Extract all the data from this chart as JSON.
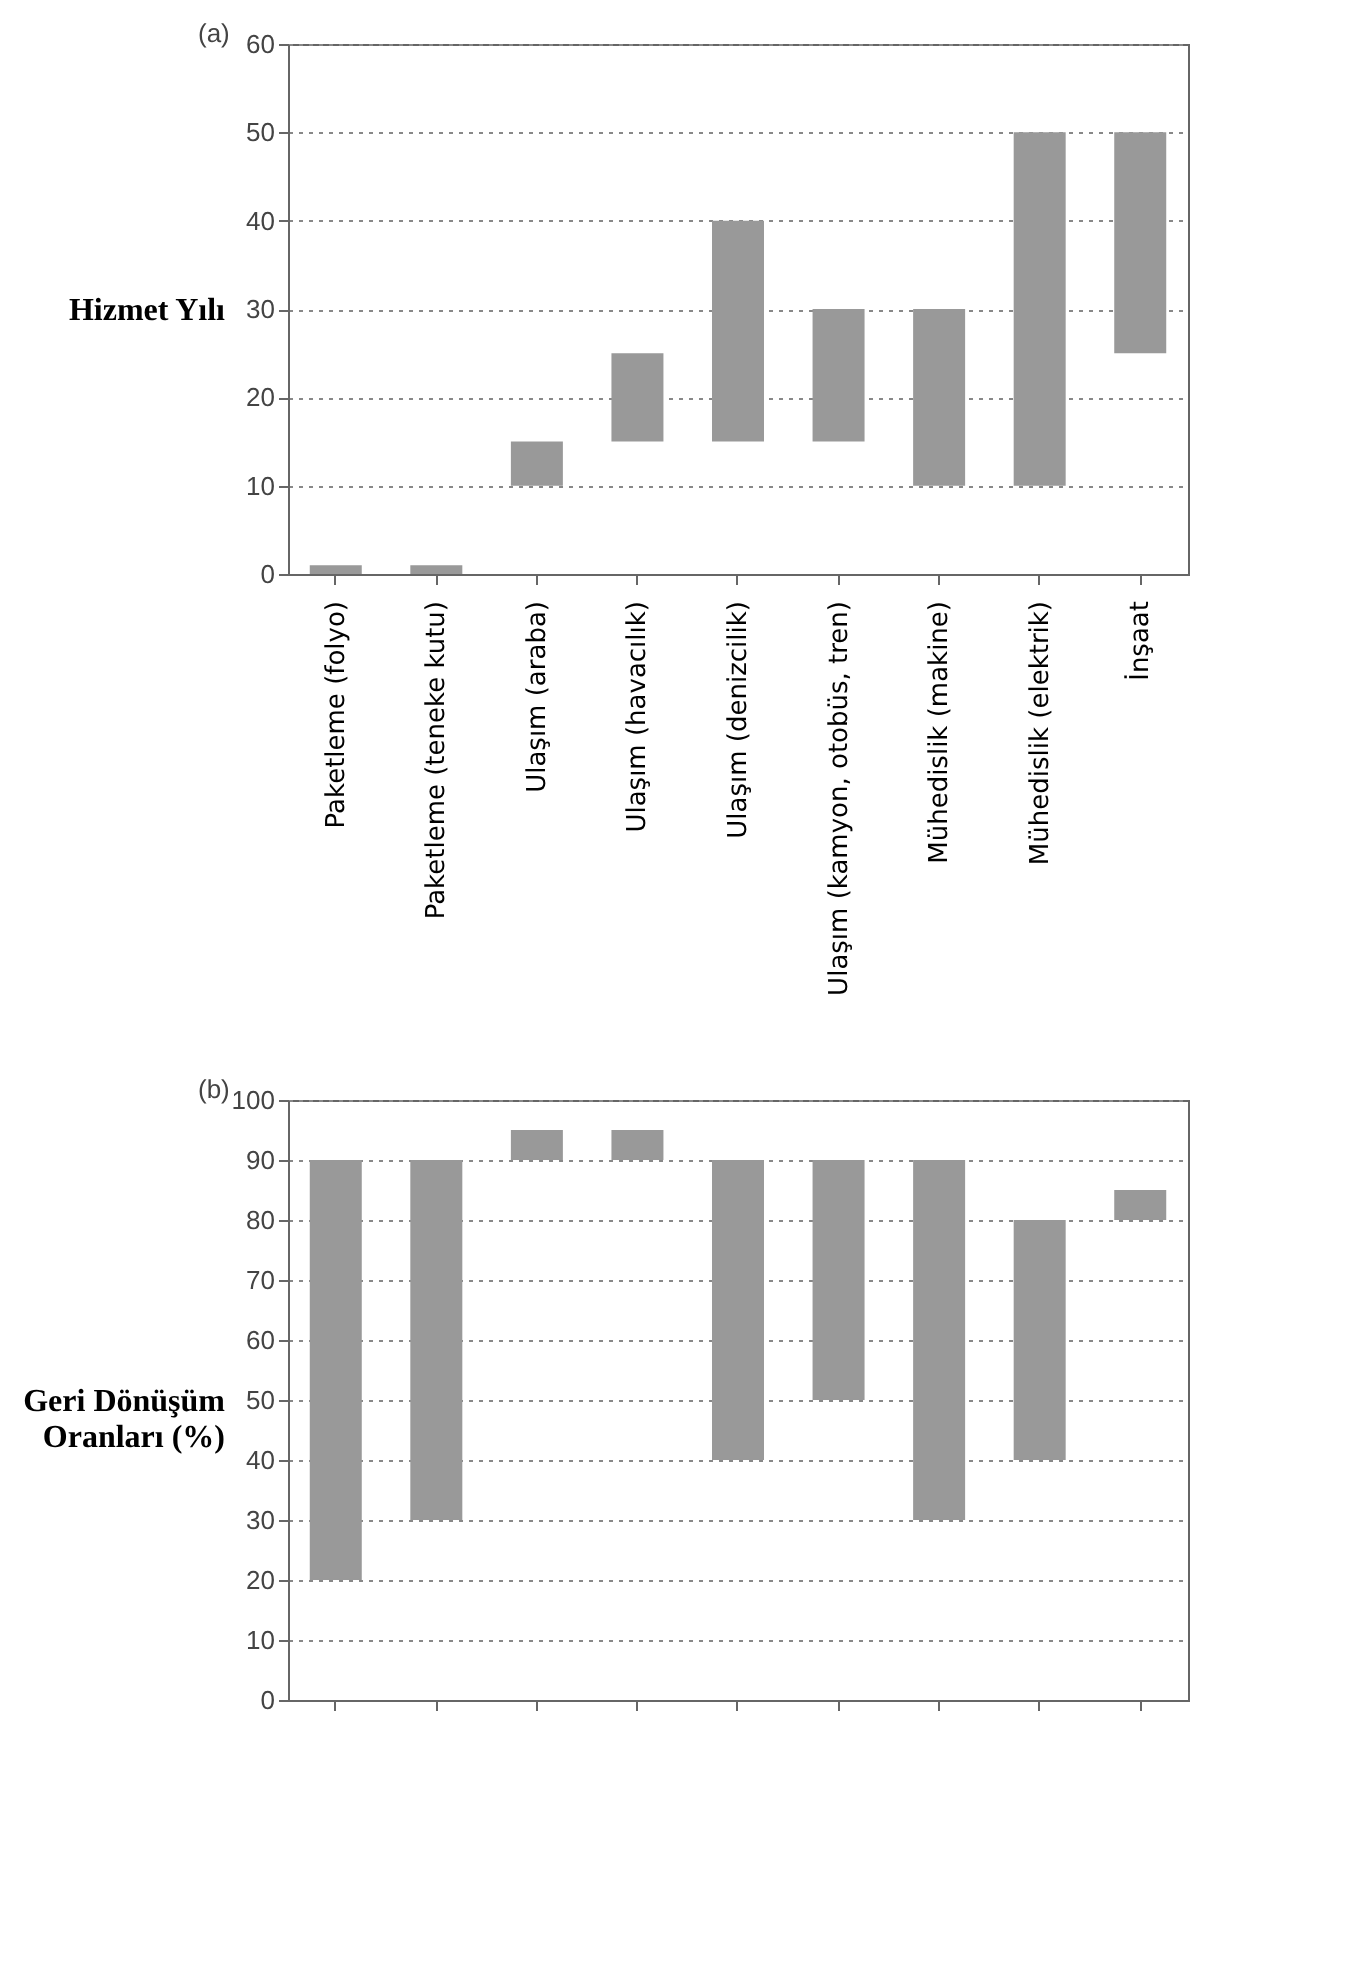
{
  "chart_data": [
    {
      "type": "bar",
      "title": "(a)",
      "ylabel": "Hizmet Yılı",
      "categories": [
        "Paketleme (folyo)",
        "Paketleme (teneke kutu)",
        "Ulaşım (araba)",
        "Ulaşım (havacılık)",
        "Ulaşım (denizcilik)",
        "Ulaşım (kamyon, otobüs, tren)",
        "Mühedislik (makine)",
        "Mühedislik (elektrik)",
        "İnşaat"
      ],
      "base": [
        0,
        0,
        10,
        15,
        15,
        15,
        10,
        10,
        25
      ],
      "values": [
        1,
        1,
        5,
        10,
        25,
        15,
        20,
        40,
        25
      ],
      "color": "#999999",
      "ylim": [
        0,
        60
      ],
      "yticks": [
        0,
        10,
        20,
        30,
        40,
        50,
        60
      ],
      "grid": "y"
    },
    {
      "type": "bar",
      "title": "(b)",
      "ylabel": "Geri Dönüşüm Oranları (%)",
      "categories": [
        null,
        null,
        null,
        null,
        null,
        null,
        null,
        null,
        null
      ],
      "base": [
        20,
        30,
        90,
        90,
        40,
        50,
        30,
        40,
        80
      ],
      "values": [
        70,
        60,
        5,
        5,
        50,
        40,
        60,
        40,
        5
      ],
      "color": "#999999",
      "ylim": [
        0,
        100
      ],
      "yticks": [
        0,
        10,
        20,
        30,
        40,
        50,
        60,
        70,
        80,
        90,
        100
      ],
      "grid": "y",
      "tick_labels": "y"
    }
  ]
}
